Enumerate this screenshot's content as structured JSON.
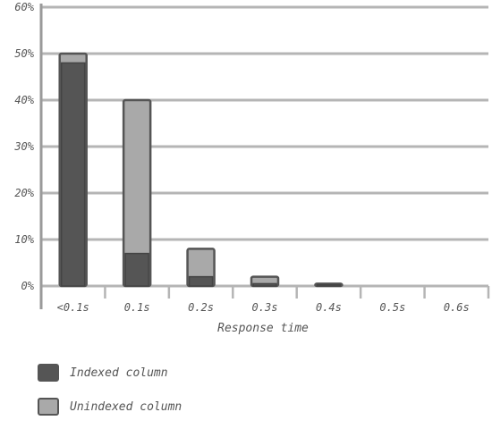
{
  "chart_data": {
    "type": "bar",
    "categories": [
      "<0.1s",
      "0.1s",
      "0.2s",
      "0.3s",
      "0.4s",
      "0.5s",
      "0.6s"
    ],
    "series": [
      {
        "name": "Indexed column",
        "values": [
          48,
          7,
          2,
          0.5,
          0.3,
          0,
          0
        ],
        "color": "#555555"
      },
      {
        "name": "Unindexed column",
        "values": [
          50,
          40,
          8,
          2,
          0.5,
          0,
          0
        ],
        "color": "#a9a9a9"
      }
    ],
    "title": "",
    "xlabel": "Response time",
    "ylabel": "",
    "ylim": [
      0,
      60
    ],
    "yticks": [
      "0%",
      "10%",
      "20%",
      "30%",
      "40%",
      "50%",
      "60%"
    ],
    "grid": true,
    "legend_position": "bottom-left"
  }
}
